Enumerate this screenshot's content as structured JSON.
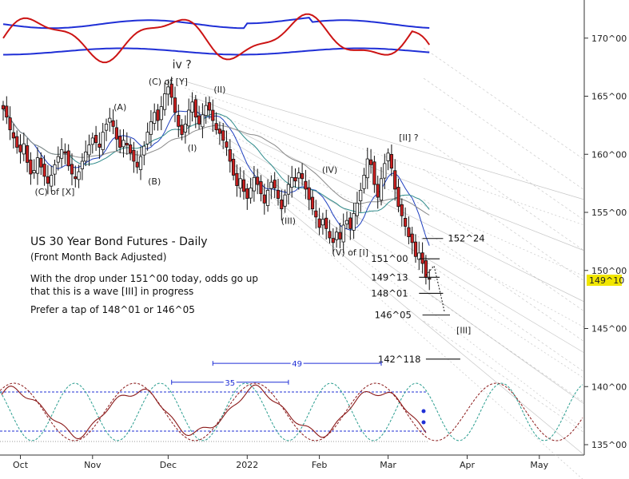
{
  "chart_data": {
    "type": "candlestick",
    "title": "US 30 Year Bond Futures - Daily",
    "subtitle": "(Front Month Back Adjusted)",
    "notes": [
      "With the drop under 151^00 today, odds go up",
      "that this is a wave [III] in progress",
      "Prefer a tap of 148^01 or 146^05"
    ],
    "ylim": [
      134.5,
      174
    ],
    "y_ticks": [
      {
        "value": 170,
        "label": "170^00"
      },
      {
        "value": 165,
        "label": "165^00"
      },
      {
        "value": 160,
        "label": "160^00"
      },
      {
        "value": 155,
        "label": "155^00"
      },
      {
        "value": 150,
        "label": "150^00"
      },
      {
        "value": 145,
        "label": "145^00"
      },
      {
        "value": 140,
        "label": "140^00"
      },
      {
        "value": 135,
        "label": "135^00"
      }
    ],
    "x_ticks": [
      {
        "day": 5,
        "label": "Oct"
      },
      {
        "day": 26,
        "label": "Nov"
      },
      {
        "day": 48,
        "label": "Dec"
      },
      {
        "day": 71,
        "label": "2022"
      },
      {
        "day": 92,
        "label": "Feb"
      },
      {
        "day": 112,
        "label": "Mar"
      },
      {
        "day": 135,
        "label": "Apr"
      },
      {
        "day": 156,
        "label": "May"
      }
    ],
    "last_price": {
      "value": 149.31,
      "label": "149^10"
    },
    "levels": [
      {
        "value": 152.75,
        "label": "152^24",
        "from_day": 122,
        "to_day": 128
      },
      {
        "value": 151.0,
        "label": "151^00",
        "from_day": 121,
        "to_day": 127
      },
      {
        "value": 149.41,
        "label": "149^13",
        "from_day": 121,
        "to_day": 127
      },
      {
        "value": 148.03,
        "label": "148^01",
        "from_day": 121,
        "to_day": 128
      },
      {
        "value": 146.16,
        "label": "146^05",
        "from_day": 122,
        "to_day": 130
      },
      {
        "value": 142.37,
        "label": "142^118",
        "from_day": 123,
        "to_day": 133
      }
    ],
    "wave_labels": [
      {
        "text": "(C) of [X]",
        "day": 15,
        "value": 156.5
      },
      {
        "text": "(A)",
        "day": 34,
        "value": 163.8
      },
      {
        "text": "(B)",
        "day": 44,
        "value": 157.4
      },
      {
        "text": "(C) of [Y]",
        "day": 48,
        "value": 166.0
      },
      {
        "text": "iv ?",
        "day": 52,
        "value": 167.4
      },
      {
        "text": "(I)",
        "day": 55,
        "value": 160.3
      },
      {
        "text": "(II)",
        "day": 63,
        "value": 165.3
      },
      {
        "text": "(IV)",
        "day": 95,
        "value": 158.4
      },
      {
        "text": "(III)",
        "day": 83,
        "value": 154.0
      },
      {
        "text": "(V) of [I]",
        "day": 101,
        "value": 151.3
      },
      {
        "text": "[II] ?",
        "day": 118,
        "value": 161.2
      },
      {
        "text": "[III]",
        "day": 134,
        "value": 144.6
      }
    ],
    "cycle_spans": [
      {
        "label": "35",
        "from_day": 49,
        "to_day": 83,
        "value": 141.2
      },
      {
        "label": "49",
        "from_day": 61,
        "to_day": 110,
        "value": 142.0
      }
    ],
    "ohlc_days_start": 0,
    "closes": [
      163.9,
      163.2,
      162.1,
      161.4,
      160.6,
      160.2,
      160.9,
      159.3,
      158.3,
      158.6,
      159.7,
      158.9,
      158.1,
      157.5,
      158.2,
      159.1,
      159.8,
      160.4,
      160.1,
      159.0,
      158.3,
      157.9,
      158.5,
      159.4,
      160.2,
      160.8,
      161.4,
      161.0,
      160.6,
      161.9,
      162.6,
      163.1,
      162.4,
      161.3,
      160.6,
      161.2,
      160.8,
      160.1,
      159.4,
      158.9,
      159.8,
      160.7,
      161.9,
      162.8,
      163.6,
      162.9,
      164.1,
      165.2,
      165.8,
      164.9,
      163.6,
      162.4,
      161.7,
      162.6,
      163.8,
      164.5,
      163.2,
      162.6,
      163.4,
      164.2,
      163.8,
      162.9,
      162.1,
      161.8,
      161.2,
      160.6,
      159.4,
      158.2,
      157.3,
      157.9,
      156.8,
      156.2,
      157.1,
      158.0,
      157.4,
      156.6,
      155.8,
      156.9,
      157.6,
      157.1,
      156.2,
      155.3,
      156.5,
      157.4,
      158.0,
      157.7,
      158.4,
      157.9,
      157.0,
      156.1,
      155.3,
      154.6,
      153.7,
      154.4,
      153.6,
      152.8,
      152.4,
      153.3,
      152.7,
      153.9,
      154.3,
      153.6,
      154.9,
      155.8,
      156.9,
      158.2,
      159.6,
      159.1,
      157.4,
      156.3,
      157.9,
      159.2,
      160.1,
      158.8,
      157.0,
      155.5,
      154.7,
      153.8,
      152.9,
      152.4,
      151.2,
      151.5,
      150.6,
      149.4,
      149.31
    ],
    "ma_colors": [
      "#1e3fbf",
      "#2f8b8b",
      "#8a8a8a"
    ],
    "bands_upper": 171.2,
    "bands_lower": 168.85,
    "colors": {
      "up_body": "#ffffff",
      "down_body": "#cc1f1f",
      "band_line": "#1f2fd6",
      "osc_line": "#cc1414",
      "cycle_red": "#8b1a1a",
      "cycle_teal": "#2a9d8f",
      "cycle_blue": "#1f2fd6",
      "last_price_bg": "#f1e600",
      "trend_lines": "#9a9a9a"
    }
  }
}
